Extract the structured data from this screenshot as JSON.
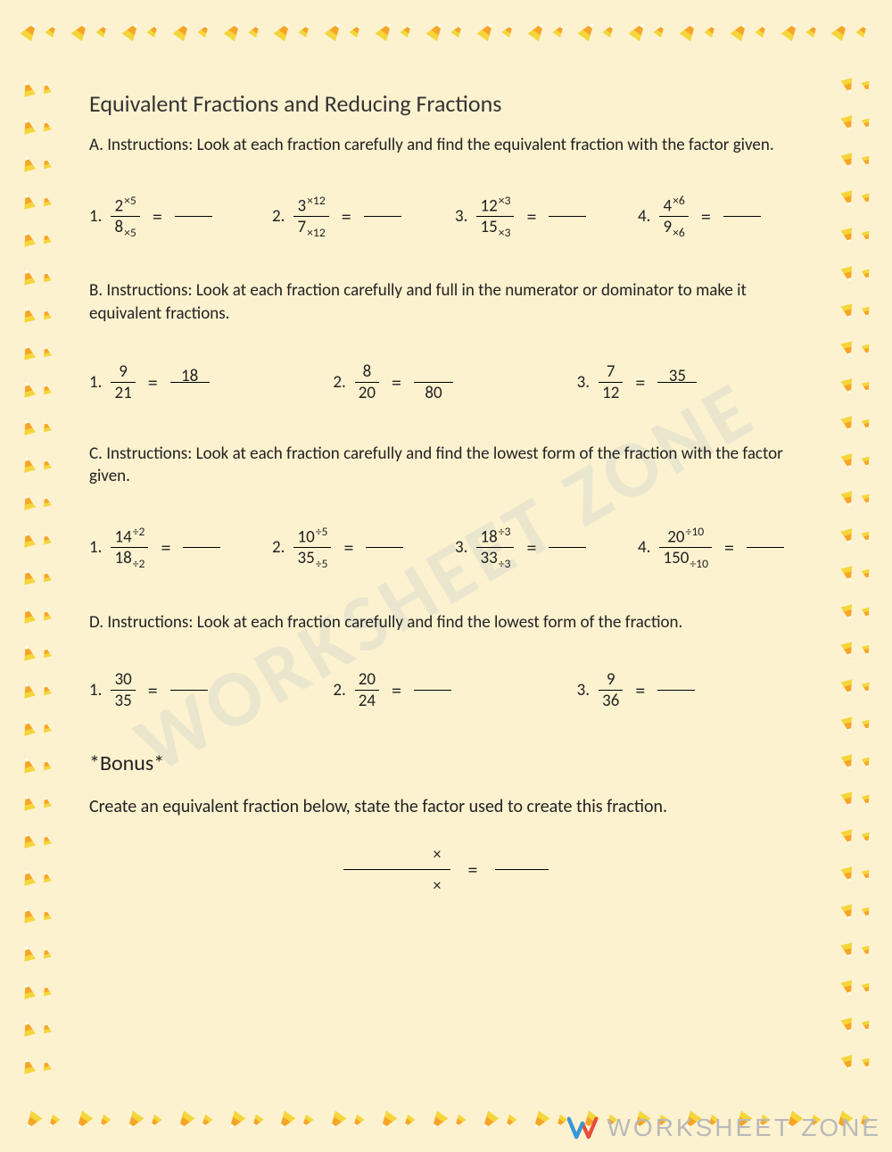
{
  "colors": {
    "background": "#fdf2d0",
    "text": "#222222",
    "candy_white": "#fdfbef",
    "candy_orange": "#f7a528",
    "candy_yellow": "#f5d63a",
    "watermark": "rgba(150,180,200,0.18)",
    "brand_text": "#b9b9b9",
    "brand_red": "#e74c3c",
    "brand_blue": "#3498db"
  },
  "title": "Equivalent Fractions and Reducing Fractions",
  "sections": {
    "A": {
      "instr": "A. Instructions: Look at each fraction carefully and find the equivalent fraction with the factor given.",
      "problems": [
        {
          "num": "1.",
          "n": "2",
          "n_op": "×5",
          "d": "8",
          "d_op": "×5"
        },
        {
          "num": "2.",
          "n": "3",
          "n_op": "×12",
          "d": "7",
          "d_op": "×12"
        },
        {
          "num": "3.",
          "n": "12",
          "n_op": "×3",
          "d": "15",
          "d_op": "×3"
        },
        {
          "num": "4.",
          "n": "4",
          "n_op": "×6",
          "d": "9",
          "d_op": "×6"
        }
      ]
    },
    "B": {
      "instr": "B. Instructions: Look at each fraction carefully and full in the numerator or dominator to make it equivalent fractions.",
      "problems": [
        {
          "num": "1.",
          "n": "9",
          "d": "21",
          "rn": "18",
          "rd": ""
        },
        {
          "num": "2.",
          "n": "8",
          "d": "20",
          "rn": "",
          "rd": "80"
        },
        {
          "num": "3.",
          "n": "7",
          "d": "12",
          "rn": "35",
          "rd": ""
        }
      ]
    },
    "C": {
      "instr": "C. Instructions: Look at each fraction carefully and find the lowest form of the fraction with the factor given.",
      "problems": [
        {
          "num": "1.",
          "n": "14",
          "n_op": "÷2",
          "d": "18",
          "d_op": "÷2"
        },
        {
          "num": "2.",
          "n": "10",
          "n_op": "÷5",
          "d": "35",
          "d_op": "÷5"
        },
        {
          "num": "3.",
          "n": "18",
          "n_op": "÷3",
          "d": "33",
          "d_op": "÷3"
        },
        {
          "num": "4.",
          "n": "20",
          "n_op": "÷10",
          "d": "150",
          "d_op": "÷10"
        }
      ]
    },
    "D": {
      "instr": "D. Instructions: Look at each fraction carefully and find the lowest form of the fraction.",
      "problems": [
        {
          "num": "1.",
          "n": "30",
          "d": "35"
        },
        {
          "num": "2.",
          "n": "20",
          "d": "24"
        },
        {
          "num": "3.",
          "n": "9",
          "d": "36"
        }
      ]
    }
  },
  "bonus": {
    "title": "*Bonus*",
    "text": "Create an equivalent fraction below, state the factor used to create this fraction.",
    "op": "×"
  },
  "watermark": "WORKSHEET ZONE",
  "brand": "WORKSHEET ZONE",
  "border": {
    "top_count": 17,
    "bottom_count": 17,
    "side_count": 27
  }
}
